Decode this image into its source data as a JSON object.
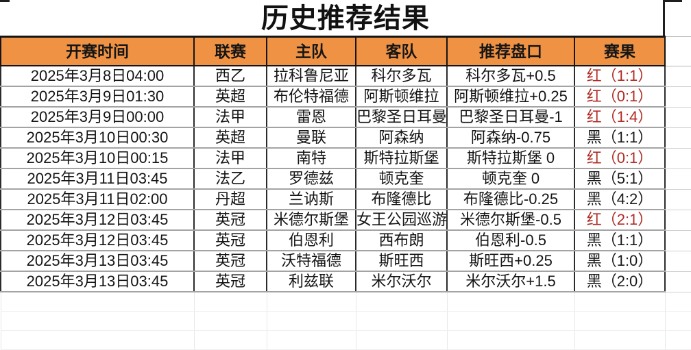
{
  "title": "历史推荐结果",
  "colors": {
    "header_bg": "#F09243",
    "red_result_text": "#B02C24",
    "black_result_text": "#1A1A1A",
    "grid_dark": "#141414",
    "grid_row_gray": "#A3A3A3"
  },
  "table": {
    "headers": [
      "开赛时间",
      "联赛",
      "主队",
      "客队",
      "推荐盘口",
      "赛果"
    ],
    "rows": [
      {
        "time": "2025年3月8日04:00",
        "league": "西乙",
        "home": "拉科鲁尼亚",
        "away": "科尔多瓦",
        "handicap": "科尔多瓦+0.5",
        "result": "红（1:1）",
        "outcome": "red"
      },
      {
        "time": "2025年3月9日01:30",
        "league": "英超",
        "home": "布伦特福德",
        "away": "阿斯顿维拉",
        "handicap": "阿斯顿维拉+0.25",
        "result": "红（0:1）",
        "outcome": "red"
      },
      {
        "time": "2025年3月9日00:00",
        "league": "法甲",
        "home": "雷恩",
        "away": "巴黎圣日耳曼",
        "handicap": "巴黎圣日耳曼-1",
        "result": "红（1:4）",
        "outcome": "red"
      },
      {
        "time": "2025年3月10日00:30",
        "league": "英超",
        "home": "曼联",
        "away": "阿森纳",
        "handicap": "阿森纳-0.75",
        "result": "黑（1:1）",
        "outcome": "black"
      },
      {
        "time": "2025年3月10日00:15",
        "league": "法甲",
        "home": "南特",
        "away": "斯特拉斯堡",
        "handicap": "斯特拉斯堡 0",
        "result": "红（0:1）",
        "outcome": "red"
      },
      {
        "time": "2025年3月11日03:45",
        "league": "法乙",
        "home": "罗德兹",
        "away": "顿克奎",
        "handicap": "顿克奎 0",
        "result": "黑（5:1）",
        "outcome": "black"
      },
      {
        "time": "2025年3月11日02:00",
        "league": "丹超",
        "home": "兰讷斯",
        "away": "布隆德比",
        "handicap": "布隆德比-0.25",
        "result": "黑（4:2）",
        "outcome": "black"
      },
      {
        "time": "2025年3月12日03:45",
        "league": "英冠",
        "home": "米德尔斯堡",
        "away": "女王公园巡游",
        "handicap": "米德尔斯堡-0.5",
        "result": "红（2:1）",
        "outcome": "red"
      },
      {
        "time": "2025年3月12日03:45",
        "league": "英冠",
        "home": "伯恩利",
        "away": "西布朗",
        "handicap": "伯恩利-0.5",
        "result": "黑（1:1）",
        "outcome": "black"
      },
      {
        "time": "2025年3月13日03:45",
        "league": "英冠",
        "home": "沃特福德",
        "away": "斯旺西",
        "handicap": "斯旺西+0.25",
        "result": "黑（1:0）",
        "outcome": "black"
      },
      {
        "time": "2025年3月13日03:45",
        "league": "英冠",
        "home": "利兹联",
        "away": "米尔沃尔",
        "handicap": "米尔沃尔+1.5",
        "result": "黑（2:0）",
        "outcome": "black"
      }
    ],
    "empty_row_count": 3
  }
}
